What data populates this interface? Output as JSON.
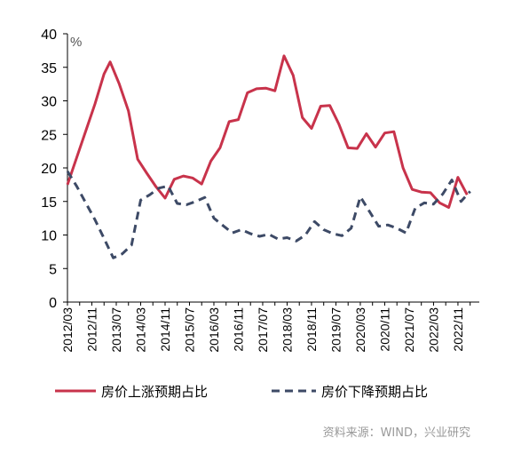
{
  "chart_data": {
    "type": "line",
    "unit": "%",
    "ylim": [
      0,
      40
    ],
    "yticks": [
      0,
      5,
      10,
      15,
      20,
      25,
      30,
      35,
      40
    ],
    "x_tick_labels": [
      "2012/03",
      "2012/11",
      "2013/07",
      "2014/03",
      "2014/11",
      "2015/07",
      "2016/03",
      "2016/11",
      "2017/07",
      "2018/03",
      "2018/11",
      "2019/07",
      "2020/03",
      "2020/11",
      "2021/07",
      "2022/03",
      "2022/11"
    ],
    "x_start": "2012/03",
    "x_end": "2023/06",
    "series": [
      {
        "name": "房价上涨预期占比",
        "color": "#c8334b",
        "style": "solid",
        "points": [
          [
            "2012/03",
            17.5
          ],
          [
            "2012/06",
            21.5
          ],
          [
            "2012/09",
            25.5
          ],
          [
            "2012/12",
            29.5
          ],
          [
            "2013/03",
            34.0
          ],
          [
            "2013/05",
            35.8
          ],
          [
            "2013/08",
            32.5
          ],
          [
            "2013/11",
            28.5
          ],
          [
            "2014/02",
            21.3
          ],
          [
            "2014/05",
            19.2
          ],
          [
            "2014/08",
            17.2
          ],
          [
            "2014/11",
            15.5
          ],
          [
            "2015/02",
            18.3
          ],
          [
            "2015/05",
            18.8
          ],
          [
            "2015/08",
            18.5
          ],
          [
            "2015/11",
            17.6
          ],
          [
            "2016/02",
            21.0
          ],
          [
            "2016/05",
            23.0
          ],
          [
            "2016/08",
            26.9
          ],
          [
            "2016/11",
            27.2
          ],
          [
            "2017/02",
            31.2
          ],
          [
            "2017/05",
            31.8
          ],
          [
            "2017/08",
            31.9
          ],
          [
            "2017/11",
            31.5
          ],
          [
            "2018/02",
            36.7
          ],
          [
            "2018/05",
            33.8
          ],
          [
            "2018/08",
            27.5
          ],
          [
            "2018/11",
            25.9
          ],
          [
            "2019/02",
            29.2
          ],
          [
            "2019/05",
            29.3
          ],
          [
            "2019/08",
            26.5
          ],
          [
            "2019/11",
            23.0
          ],
          [
            "2020/02",
            22.9
          ],
          [
            "2020/05",
            25.1
          ],
          [
            "2020/08",
            23.1
          ],
          [
            "2020/11",
            25.2
          ],
          [
            "2021/02",
            25.4
          ],
          [
            "2021/05",
            20.0
          ],
          [
            "2021/08",
            16.8
          ],
          [
            "2021/11",
            16.4
          ],
          [
            "2022/02",
            16.3
          ],
          [
            "2022/05",
            14.8
          ],
          [
            "2022/08",
            14.1
          ],
          [
            "2022/11",
            18.6
          ],
          [
            "2023/02",
            16.0
          ]
        ]
      },
      {
        "name": "房价下降预期占比",
        "color": "#3d4a66",
        "style": "dashed",
        "points": [
          [
            "2012/03",
            19.5
          ],
          [
            "2012/06",
            17.3
          ],
          [
            "2012/09",
            14.8
          ],
          [
            "2012/12",
            12.3
          ],
          [
            "2013/03",
            9.5
          ],
          [
            "2013/06",
            6.6
          ],
          [
            "2013/09",
            7.2
          ],
          [
            "2013/12",
            8.5
          ],
          [
            "2014/03",
            15.2
          ],
          [
            "2014/06",
            16.0
          ],
          [
            "2014/09",
            17.0
          ],
          [
            "2014/12",
            17.3
          ],
          [
            "2015/03",
            14.7
          ],
          [
            "2015/06",
            14.5
          ],
          [
            "2015/09",
            15.0
          ],
          [
            "2015/12",
            15.6
          ],
          [
            "2016/03",
            12.5
          ],
          [
            "2016/06",
            11.4
          ],
          [
            "2016/09",
            10.3
          ],
          [
            "2016/12",
            10.8
          ],
          [
            "2017/03",
            10.2
          ],
          [
            "2017/06",
            9.8
          ],
          [
            "2017/09",
            10.1
          ],
          [
            "2017/12",
            9.4
          ],
          [
            "2018/03",
            9.6
          ],
          [
            "2018/06",
            9.1
          ],
          [
            "2018/09",
            10.0
          ],
          [
            "2018/12",
            12.0
          ],
          [
            "2019/03",
            10.8
          ],
          [
            "2019/06",
            10.2
          ],
          [
            "2019/09",
            9.9
          ],
          [
            "2019/12",
            11.0
          ],
          [
            "2020/03",
            15.7
          ],
          [
            "2020/06",
            13.5
          ],
          [
            "2020/09",
            11.3
          ],
          [
            "2020/12",
            11.5
          ],
          [
            "2021/03",
            11.0
          ],
          [
            "2021/06",
            10.3
          ],
          [
            "2021/09",
            14.0
          ],
          [
            "2021/12",
            14.8
          ],
          [
            "2022/03",
            14.6
          ],
          [
            "2022/06",
            16.1
          ],
          [
            "2022/09",
            18.2
          ],
          [
            "2022/12",
            15.0
          ],
          [
            "2023/03",
            16.5
          ]
        ]
      }
    ],
    "legend_position": "bottom"
  },
  "source_text": "资料来源：WIND，兴业研究"
}
